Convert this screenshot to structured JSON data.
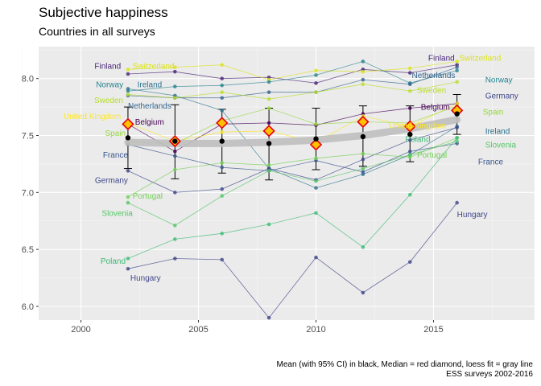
{
  "chart_data": {
    "type": "line",
    "title": "Subjective happiness",
    "subtitle": "Countries in all surveys",
    "caption": [
      "Mean (with 95% CI) in black, Median = red diamond, loess fit = gray line",
      "ESS surveys 2002-2016"
    ],
    "xlim": [
      1998.2,
      2019.3
    ],
    "ylim": [
      5.88,
      8.28
    ],
    "x_ticks": [
      2000,
      2005,
      2010,
      2015
    ],
    "y_ticks": [
      6.0,
      6.5,
      7.0,
      7.5,
      8.0
    ],
    "y_tick_labels": [
      "6.0",
      "6.5",
      "7.0",
      "7.5",
      "8.0"
    ],
    "grid": true,
    "x": [
      2002,
      2004,
      2006,
      2008,
      2010,
      2012,
      2014,
      2016
    ],
    "series": [
      {
        "name": "Finland",
        "color": "#482677",
        "values": [
          8.04,
          8.06,
          8.0,
          8.01,
          7.96,
          8.08,
          8.05,
          8.12
        ]
      },
      {
        "name": "Switzerland",
        "color": "#dce318",
        "values": [
          8.08,
          8.1,
          8.12,
          7.99,
          8.07,
          8.06,
          8.09,
          8.15
        ]
      },
      {
        "name": "Norway",
        "color": "#26838f",
        "values": [
          7.89,
          7.93,
          7.94,
          7.97,
          8.03,
          8.15,
          7.96,
          8.07
        ]
      },
      {
        "name": "Ireland",
        "color": "#2d718e",
        "values": [
          7.91,
          7.85,
          7.72,
          7.21,
          7.04,
          7.16,
          7.33,
          7.58
        ]
      },
      {
        "name": "Netherlands",
        "color": "#33638d",
        "values": [
          7.85,
          7.83,
          7.83,
          7.88,
          7.88,
          7.99,
          7.95,
          8.1
        ]
      },
      {
        "name": "Sweden",
        "color": "#b8de29",
        "values": [
          7.86,
          7.83,
          7.88,
          7.82,
          7.88,
          7.95,
          7.89,
          7.97
        ]
      },
      {
        "name": "Germany",
        "color": "#3f4788",
        "values": [
          7.19,
          7.0,
          7.03,
          7.21,
          7.11,
          7.29,
          7.46,
          7.57
        ]
      },
      {
        "name": "Belgium",
        "color": "#440154",
        "values": [
          7.6,
          7.36,
          7.6,
          7.61,
          7.59,
          7.69,
          7.74,
          7.78
        ]
      },
      {
        "name": "United Kingdom",
        "color": "#fde725",
        "values": [
          7.61,
          7.45,
          7.53,
          7.54,
          7.44,
          7.67,
          7.58,
          7.78
        ]
      },
      {
        "name": "Spain",
        "color": "#95d840",
        "values": [
          7.44,
          7.43,
          7.63,
          7.74,
          7.6,
          7.62,
          7.61,
          7.76
        ]
      },
      {
        "name": "France",
        "color": "#39568c",
        "values": [
          7.42,
          7.32,
          7.22,
          7.19,
          7.28,
          7.18,
          7.36,
          7.43
        ]
      },
      {
        "name": "Portugal",
        "color": "#73d055",
        "values": [
          6.96,
          7.2,
          7.26,
          7.24,
          7.3,
          7.34,
          7.31,
          7.48
        ]
      },
      {
        "name": "Slovenia",
        "color": "#55c667",
        "values": [
          6.91,
          6.71,
          6.97,
          7.19,
          7.1,
          7.21,
          7.33,
          7.45
        ]
      },
      {
        "name": "Poland",
        "color": "#3cbb75",
        "values": [
          6.42,
          6.59,
          6.64,
          6.72,
          6.82,
          6.52,
          6.98,
          7.48
        ]
      },
      {
        "name": "Hungary",
        "color": "#404688",
        "values": [
          6.33,
          6.42,
          6.41,
          5.9,
          6.43,
          6.12,
          6.39,
          6.91
        ]
      }
    ],
    "labels_2002": [
      {
        "text": "Finland",
        "series": 0,
        "x": 2001.7,
        "y": 8.11,
        "anchor": "end"
      },
      {
        "text": "Switzerland",
        "series": 1,
        "x": 2002.2,
        "y": 8.11,
        "anchor": "start"
      },
      {
        "text": "Norway",
        "series": 2,
        "x": 2001.8,
        "y": 7.95,
        "anchor": "end"
      },
      {
        "text": "Ireland",
        "series": 3,
        "x": 2002.4,
        "y": 7.95,
        "anchor": "start"
      },
      {
        "text": "Sweden",
        "series": 5,
        "x": 2001.8,
        "y": 7.81,
        "anchor": "end"
      },
      {
        "text": "Netherlands",
        "series": 4,
        "x": 2002.0,
        "y": 7.76,
        "anchor": "start"
      },
      {
        "text": "United Kingdom",
        "series": 8,
        "x": 2001.7,
        "y": 7.67,
        "anchor": "end"
      },
      {
        "text": "Belgium",
        "series": 7,
        "x": 2002.3,
        "y": 7.62,
        "anchor": "start"
      },
      {
        "text": "Spain",
        "series": 9,
        "x": 2001.9,
        "y": 7.52,
        "anchor": "end"
      },
      {
        "text": "France",
        "series": 10,
        "x": 2002.0,
        "y": 7.33,
        "anchor": "end"
      },
      {
        "text": "Germany",
        "series": 6,
        "x": 2002.0,
        "y": 7.11,
        "anchor": "end"
      },
      {
        "text": "Portugal",
        "series": 11,
        "x": 2002.2,
        "y": 6.97,
        "anchor": "start"
      },
      {
        "text": "Slovenia",
        "series": 12,
        "x": 2002.2,
        "y": 6.82,
        "anchor": "end"
      },
      {
        "text": "Poland",
        "series": 13,
        "x": 2001.9,
        "y": 6.4,
        "anchor": "end"
      },
      {
        "text": "Hungary",
        "series": 14,
        "x": 2002.1,
        "y": 6.25,
        "anchor": "start"
      }
    ],
    "labels_2016": [
      {
        "text": "Finland",
        "series": 0,
        "x": 2015.9,
        "y": 8.18,
        "anchor": "end"
      },
      {
        "text": "Switzerland",
        "series": 1,
        "x": 2016.1,
        "y": 8.18,
        "anchor": "start"
      },
      {
        "text": "Netherlands",
        "series": 4,
        "x": 2015.0,
        "y": 8.03,
        "anchor": "middle"
      },
      {
        "text": "Norway",
        "series": 2,
        "x": 2017.2,
        "y": 7.99,
        "anchor": "start"
      },
      {
        "text": "Sweden",
        "series": 5,
        "x": 2014.3,
        "y": 7.9,
        "anchor": "start"
      },
      {
        "text": "Germany",
        "series": 6,
        "x": 2017.2,
        "y": 7.85,
        "anchor": "start"
      },
      {
        "text": "Belgium",
        "series": 7,
        "x": 2015.7,
        "y": 7.75,
        "anchor": "end"
      },
      {
        "text": "Spain",
        "series": 9,
        "x": 2017.1,
        "y": 7.71,
        "anchor": "start"
      },
      {
        "text": "United Kingdom",
        "series": 8,
        "x": 2013.1,
        "y": 7.59,
        "anchor": "start"
      },
      {
        "text": "Ireland",
        "series": 3,
        "x": 2017.2,
        "y": 7.54,
        "anchor": "start"
      },
      {
        "text": "Poland",
        "series": 13,
        "x": 2013.8,
        "y": 7.47,
        "anchor": "start"
      },
      {
        "text": "Slovenia",
        "series": 12,
        "x": 2017.2,
        "y": 7.42,
        "anchor": "start"
      },
      {
        "text": "Portugal",
        "series": 11,
        "x": 2014.3,
        "y": 7.33,
        "anchor": "start"
      },
      {
        "text": "France",
        "series": 10,
        "x": 2016.9,
        "y": 7.27,
        "anchor": "start"
      },
      {
        "text": "Hungary",
        "series": 14,
        "x": 2016.0,
        "y": 6.81,
        "anchor": "start"
      }
    ],
    "mean": {
      "values": [
        7.48,
        7.45,
        7.45,
        7.43,
        7.47,
        7.49,
        7.51,
        7.69
      ],
      "ci_low": [
        7.21,
        7.12,
        7.17,
        7.11,
        7.2,
        7.23,
        7.27,
        7.51
      ],
      "ci_high": [
        7.75,
        7.77,
        7.73,
        7.74,
        7.74,
        7.76,
        7.76,
        7.86
      ],
      "color": "#000000"
    },
    "median": {
      "values": [
        7.6,
        7.45,
        7.61,
        7.54,
        7.42,
        7.62,
        7.58,
        7.72
      ],
      "color": "#e3000f",
      "fill": "#ffc000"
    },
    "loess": {
      "values": [
        7.44,
        7.43,
        7.43,
        7.44,
        7.46,
        7.5,
        7.56,
        7.64
      ],
      "color": "#bfbfbf"
    }
  }
}
